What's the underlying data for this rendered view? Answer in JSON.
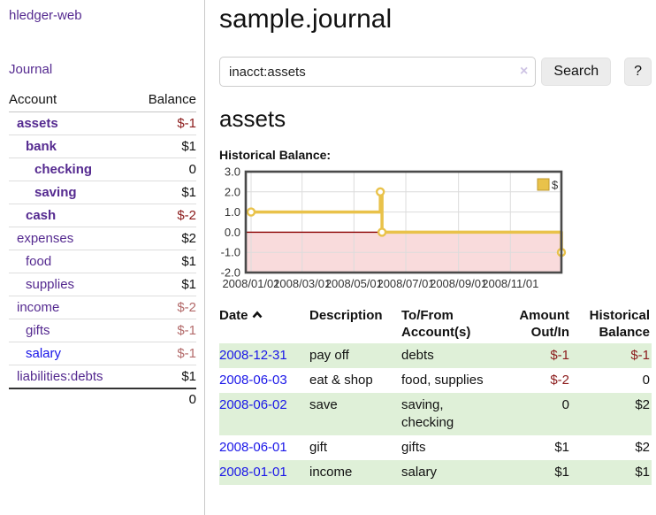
{
  "colors": {
    "purple_link": "#552a90",
    "blue_link": "#1a16e8",
    "negative_strong": "#8b1a1a",
    "negative_soft": "#b36a6a",
    "row_shade_green": "#dff0d8",
    "series_gold": "#e9c24a",
    "negative_region_pink": "#f9dbdc",
    "zero_line_red": "#8b0000"
  },
  "sidebar": {
    "app_title": "hledger-web",
    "nav_journal": "Journal",
    "accounts": {
      "header_account": "Account",
      "header_balance": "Balance",
      "rows": [
        {
          "account": "assets",
          "balance": "$-1",
          "depth": 0,
          "strong": true,
          "link_color": "purple",
          "balance_class": "neg-strong"
        },
        {
          "account": "bank",
          "balance": "$1",
          "depth": 1,
          "strong": true,
          "link_color": "purple",
          "balance_class": ""
        },
        {
          "account": "checking",
          "balance": "0",
          "depth": 2,
          "strong": true,
          "link_color": "purple",
          "balance_class": ""
        },
        {
          "account": "saving",
          "balance": "$1",
          "depth": 2,
          "strong": true,
          "link_color": "purple",
          "balance_class": ""
        },
        {
          "account": "cash",
          "balance": "$-2",
          "depth": 1,
          "strong": true,
          "link_color": "purple",
          "balance_class": "neg-strong"
        },
        {
          "account": "expenses",
          "balance": "$2",
          "depth": 0,
          "strong": false,
          "link_color": "purple",
          "balance_class": ""
        },
        {
          "account": "food",
          "balance": "$1",
          "depth": 1,
          "strong": false,
          "link_color": "purple",
          "balance_class": ""
        },
        {
          "account": "supplies",
          "balance": "$1",
          "depth": 1,
          "strong": false,
          "link_color": "purple",
          "balance_class": ""
        },
        {
          "account": "income",
          "balance": "$-2",
          "depth": 0,
          "strong": false,
          "link_color": "purple",
          "balance_class": "neg-soft"
        },
        {
          "account": "gifts",
          "balance": "$-1",
          "depth": 1,
          "strong": false,
          "link_color": "purple",
          "balance_class": "neg-soft"
        },
        {
          "account": "salary",
          "balance": "$-1",
          "depth": 1,
          "strong": false,
          "link_color": "blue",
          "balance_class": "neg-soft"
        },
        {
          "account": "liabilities:debts",
          "balance": "$1",
          "depth": 0,
          "strong": false,
          "link_color": "purple",
          "balance_class": ""
        }
      ],
      "total": "0"
    }
  },
  "main": {
    "title": "sample.journal",
    "search": {
      "value": "inacct:assets",
      "clear_icon": "×",
      "search_button": "Search",
      "help_button": "?"
    },
    "account_heading": "assets",
    "register": {
      "headers": {
        "date": "Date",
        "description": "Description",
        "accounts": "To/From\nAccount(s)",
        "amount": "Amount\nOut/In",
        "balance": "Historical\nBalance"
      },
      "rows": [
        {
          "date": "2008-12-31",
          "description": "pay off",
          "accounts": "debts",
          "amount": "$-1",
          "balance": "$-1",
          "amount_neg": true,
          "balance_neg": true,
          "shaded": true
        },
        {
          "date": "2008-06-03",
          "description": "eat & shop",
          "accounts": "food, supplies",
          "amount": "$-2",
          "balance": "0",
          "amount_neg": true,
          "balance_neg": false,
          "shaded": false
        },
        {
          "date": "2008-06-02",
          "description": "save",
          "accounts": "saving,\nchecking",
          "amount": "0",
          "balance": "$2",
          "amount_neg": false,
          "balance_neg": false,
          "shaded": true
        },
        {
          "date": "2008-06-01",
          "description": "gift",
          "accounts": "gifts",
          "amount": "$1",
          "balance": "$2",
          "amount_neg": false,
          "balance_neg": false,
          "shaded": false
        },
        {
          "date": "2008-01-01",
          "description": "income",
          "accounts": "salary",
          "amount": "$1",
          "balance": "$1",
          "amount_neg": false,
          "balance_neg": false,
          "shaded": true
        }
      ]
    }
  },
  "chart_data": {
    "type": "line",
    "step": true,
    "title": "Historical Balance:",
    "series": [
      {
        "name": "$",
        "color": "#e9c24a",
        "points": [
          [
            "2008-01-01",
            1
          ],
          [
            "2008-06-01",
            2
          ],
          [
            "2008-06-03",
            0
          ],
          [
            "2008-12-31",
            -1
          ]
        ]
      }
    ],
    "xlim": [
      "2008-01-01",
      "2008-12-31"
    ],
    "ylim": [
      -2,
      3
    ],
    "y_ticks": [
      {
        "value": 3,
        "label": "3.0"
      },
      {
        "value": 2,
        "label": "2.0"
      },
      {
        "value": 1,
        "label": "1.0"
      },
      {
        "value": 0,
        "label": "0.0"
      },
      {
        "value": -1,
        "label": "-1.0"
      },
      {
        "value": -2,
        "label": "-2.0"
      }
    ],
    "x_ticks": [
      {
        "date": "2008-01-01",
        "label": "2008/01/01"
      },
      {
        "date": "2008-03-01",
        "label": "2008/03/01"
      },
      {
        "date": "2008-05-01",
        "label": "2008/05/01"
      },
      {
        "date": "2008-07-01",
        "label": "2008/07/01"
      },
      {
        "date": "2008-09-01",
        "label": "2008/09/01"
      },
      {
        "date": "2008-11-01",
        "label": "2008/11/01"
      }
    ],
    "grid": true,
    "legend_position": "top-right",
    "negative_region_color": "#f9dbdc",
    "zero_line_color": "#8b0000"
  }
}
